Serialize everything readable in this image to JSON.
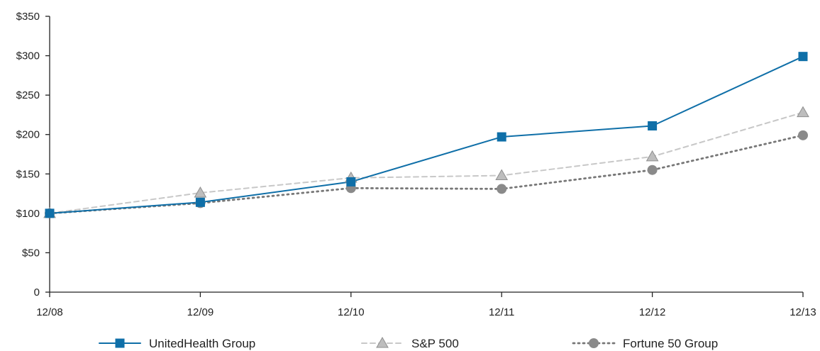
{
  "chart_data": {
    "type": "line",
    "categories": [
      "12/08",
      "12/09",
      "12/10",
      "12/11",
      "12/12",
      "12/13"
    ],
    "y_tick_labels": [
      "0",
      "$50",
      "$100",
      "$150",
      "$200",
      "$250",
      "$300",
      "$350"
    ],
    "y_ticks": [
      0,
      50,
      100,
      150,
      200,
      250,
      300,
      350
    ],
    "ylim": [
      0,
      350
    ],
    "grid": false,
    "legend_position": "bottom",
    "series": [
      {
        "name": "UnitedHealth Group",
        "values": [
          100,
          114,
          140,
          197,
          211,
          299
        ],
        "color": "#0f6fa8",
        "marker": "square",
        "line_style": "solid"
      },
      {
        "name": "S&P 500",
        "values": [
          100,
          126,
          145,
          148,
          172,
          228
        ],
        "color": "#c8c8c8",
        "marker_fill": "#bdbdbd",
        "marker": "triangle",
        "line_style": "dashed"
      },
      {
        "name": "Fortune 50 Group",
        "values": [
          100,
          113,
          132,
          131,
          155,
          199
        ],
        "color": "#777777",
        "marker_fill": "#8a8a8a",
        "marker": "circle",
        "line_style": "dotted"
      }
    ]
  }
}
